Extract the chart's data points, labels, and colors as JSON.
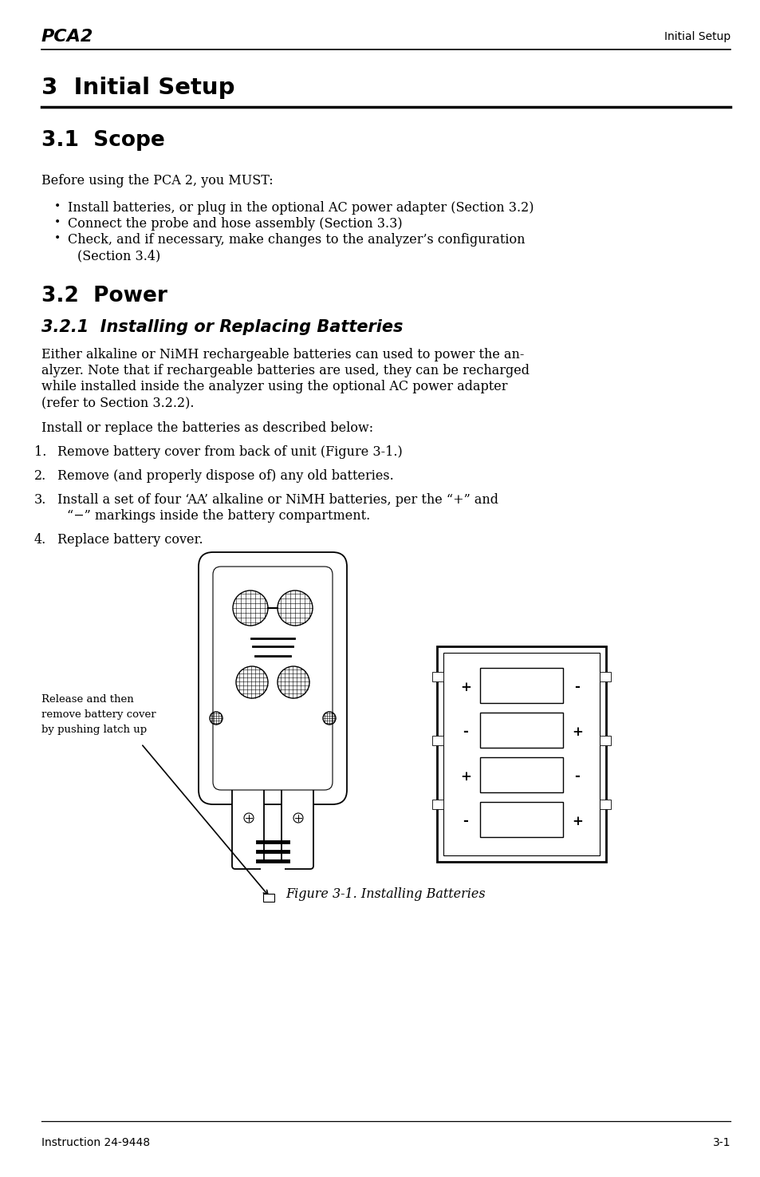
{
  "bg_color": "#ffffff",
  "text_color": "#000000",
  "header_logo_text": "PCA2",
  "header_right_text": "Initial Setup",
  "footer_left_text": "Instruction 24-9448",
  "footer_right_text": "3-1",
  "chapter_title": "3  Initial Setup",
  "section_1_title": "3.1  Scope",
  "section_1_intro": "Before using the PCA 2, you MUST:",
  "bullet_items": [
    "Install batteries, or plug in the optional AC power adapter (Section 3.2)",
    "Connect the probe and hose assembly (Section 3.3)",
    "Check, and if necessary, make changes to the analyzer’s configuration",
    "(Section 3.4)"
  ],
  "section_2_title": "3.2  Power",
  "subsection_title": "3.2.1  Installing or Replacing Batteries",
  "body1_lines": [
    "Either alkaline or NiMH rechargeable batteries can used to power the an-",
    "alyzer. Note that if rechargeable batteries are used, they can be recharged",
    "while installed inside the analyzer using the optional AC power adapter",
    "(refer to Section 3.2.2)."
  ],
  "body_paragraph_2": "Install or replace the batteries as described below:",
  "num_item_1": "Remove battery cover from back of unit (Figure 3-1.)",
  "num_item_2": "Remove (and properly dispose of) any old batteries.",
  "num_item_3a": "Install a set of four ‘AA’ alkaline or NiMH batteries, per the “+” and",
  "num_item_3b": "“−” markings inside the battery compartment.",
  "num_item_4": "Replace battery cover.",
  "figure_caption": "Figure 3-1. Installing Batteries",
  "callout_text": "Release and then\nremove battery cover\nby pushing latch up",
  "sign_positions": [
    [
      "+",
      "-"
    ],
    [
      "-",
      "+"
    ],
    [
      "+",
      "-"
    ],
    [
      "-",
      "+"
    ]
  ]
}
